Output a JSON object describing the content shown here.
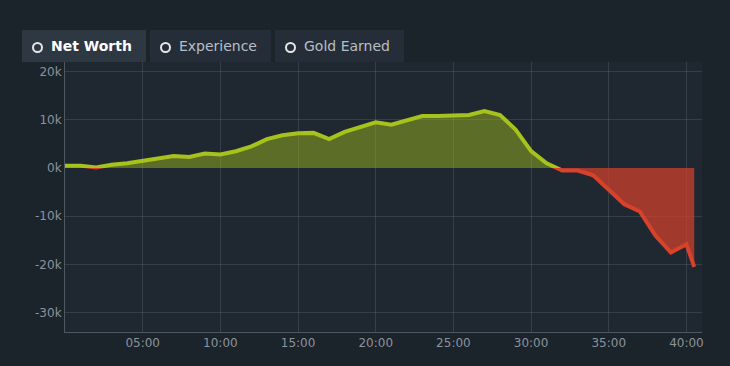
{
  "tabs": [
    "Net Worth",
    "Experience",
    "Gold Earned"
  ],
  "active_tab": "Net Worth",
  "chart_data": {
    "type": "area",
    "x": [
      0,
      1,
      2,
      3,
      4,
      5,
      6,
      7,
      8,
      9,
      10,
      11,
      12,
      13,
      14,
      15,
      16,
      17,
      18,
      19,
      20,
      21,
      22,
      23,
      24,
      25,
      26,
      27,
      28,
      29,
      30,
      31,
      32,
      33,
      34,
      35,
      36,
      37,
      38,
      39,
      40,
      40.5
    ],
    "series": [
      {
        "color": "#a6c21c",
        "values": [
          500,
          500,
          100,
          700,
          1000,
          1500,
          2000,
          2500,
          2300,
          3000,
          2800,
          3500,
          4500,
          6000,
          6800,
          7200,
          7300,
          6000,
          7500,
          8500,
          9500,
          9000,
          10000,
          10800,
          10800,
          11000,
          11000,
          11800,
          11000,
          8000,
          3500,
          1000,
          -500,
          -500,
          -1500,
          -4500,
          -7500,
          -9000,
          -14000,
          -17500,
          -15800,
          -20500
        ]
      }
    ],
    "xlim": [
      0,
      41
    ],
    "xticks": [
      {
        "value": 5,
        "label": "05:00"
      },
      {
        "value": 10,
        "label": "10:00"
      },
      {
        "value": 15,
        "label": "15:00"
      },
      {
        "value": 20,
        "label": "20:00"
      },
      {
        "value": 25,
        "label": "25:00"
      },
      {
        "value": 30,
        "label": "30:00"
      },
      {
        "value": 35,
        "label": "35:00"
      },
      {
        "value": 40,
        "label": "40:00"
      }
    ],
    "ylim": [
      -34000,
      22000
    ],
    "yticks": [
      {
        "value": 20000,
        "label": "20k"
      },
      {
        "value": 10000,
        "label": "10k"
      },
      {
        "value": 0,
        "label": "0k"
      },
      {
        "value": -10000,
        "label": "-10k"
      },
      {
        "value": -20000,
        "label": "-20k"
      },
      {
        "value": -30000,
        "label": "-30k"
      }
    ],
    "grid": true
  }
}
